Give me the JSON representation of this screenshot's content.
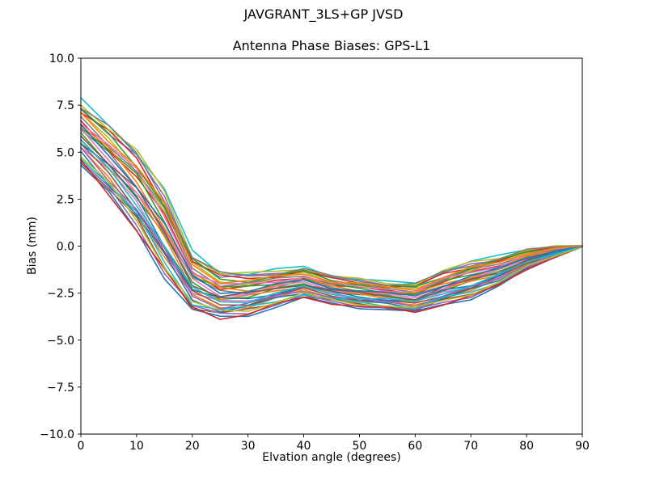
{
  "chart_data": {
    "type": "line",
    "title": "JAVGRANT_3LS+GP JVSD",
    "subtitle": "Antenna Phase Biases: GPS-L1",
    "xlabel": "Elvation angle (degrees)",
    "ylabel": "Bias (mm)",
    "xlim": [
      0,
      90
    ],
    "ylim": [
      -10,
      10
    ],
    "xticks": [
      0,
      10,
      20,
      30,
      40,
      50,
      60,
      70,
      80,
      90
    ],
    "xtick_labels": [
      "0",
      "10",
      "20",
      "30",
      "40",
      "50",
      "60",
      "70",
      "80",
      "90"
    ],
    "yticks": [
      -10,
      -7.5,
      -5,
      -2.5,
      0,
      2.5,
      5,
      7.5,
      10
    ],
    "ytick_labels": [
      "−10.0",
      "−7.5",
      "−5.0",
      "−2.5",
      "0.0",
      "2.5",
      "5.0",
      "7.5",
      "10.0"
    ],
    "grid": false,
    "legend_position": "none",
    "n_series": 32,
    "x": [
      0,
      5,
      10,
      15,
      20,
      25,
      30,
      35,
      40,
      45,
      50,
      55,
      60,
      65,
      70,
      75,
      80,
      85,
      90
    ],
    "envelope_mean": [
      6.0,
      4.6,
      3.0,
      0.7,
      -1.9,
      -2.6,
      -2.55,
      -2.25,
      -1.95,
      -2.3,
      -2.5,
      -2.65,
      -2.75,
      -2.2,
      -1.8,
      -1.35,
      -0.7,
      -0.3,
      0.0
    ],
    "envelope_halfwidth": [
      1.7,
      1.9,
      2.1,
      2.2,
      1.55,
      1.25,
      1.1,
      0.95,
      0.85,
      0.75,
      0.75,
      0.72,
      0.8,
      0.9,
      0.95,
      0.8,
      0.55,
      0.3,
      0.03
    ],
    "series_offsets": [
      -1.0,
      -0.55,
      -0.1,
      0.35,
      0.81,
      -0.81,
      -0.35,
      0.1,
      0.55,
      1.0,
      -0.61,
      -0.16,
      0.29,
      0.74,
      -0.87,
      -0.42,
      0.03,
      0.48,
      0.94,
      -0.68,
      -0.23,
      0.23,
      0.68,
      -0.94,
      -0.48,
      -0.03,
      0.42,
      0.87,
      -0.74,
      -0.29,
      0.16,
      0.61
    ],
    "jitter_rel": 0.12,
    "line_width": 1.6,
    "color_cycle": [
      "#1f77b4",
      "#ff7f0e",
      "#2ca02c",
      "#d62728",
      "#9467bd",
      "#8c564b",
      "#e377c2",
      "#7f7f7f",
      "#bcbd22",
      "#17becf"
    ],
    "axis_color": "#000000",
    "note": "32 unlabeled per-satellite phase-bias curves; each curve = envelope_mean + offset*envelope_halfwidth with small interleaving wobble; all converge to 0.0 mm at 90 degrees"
  }
}
